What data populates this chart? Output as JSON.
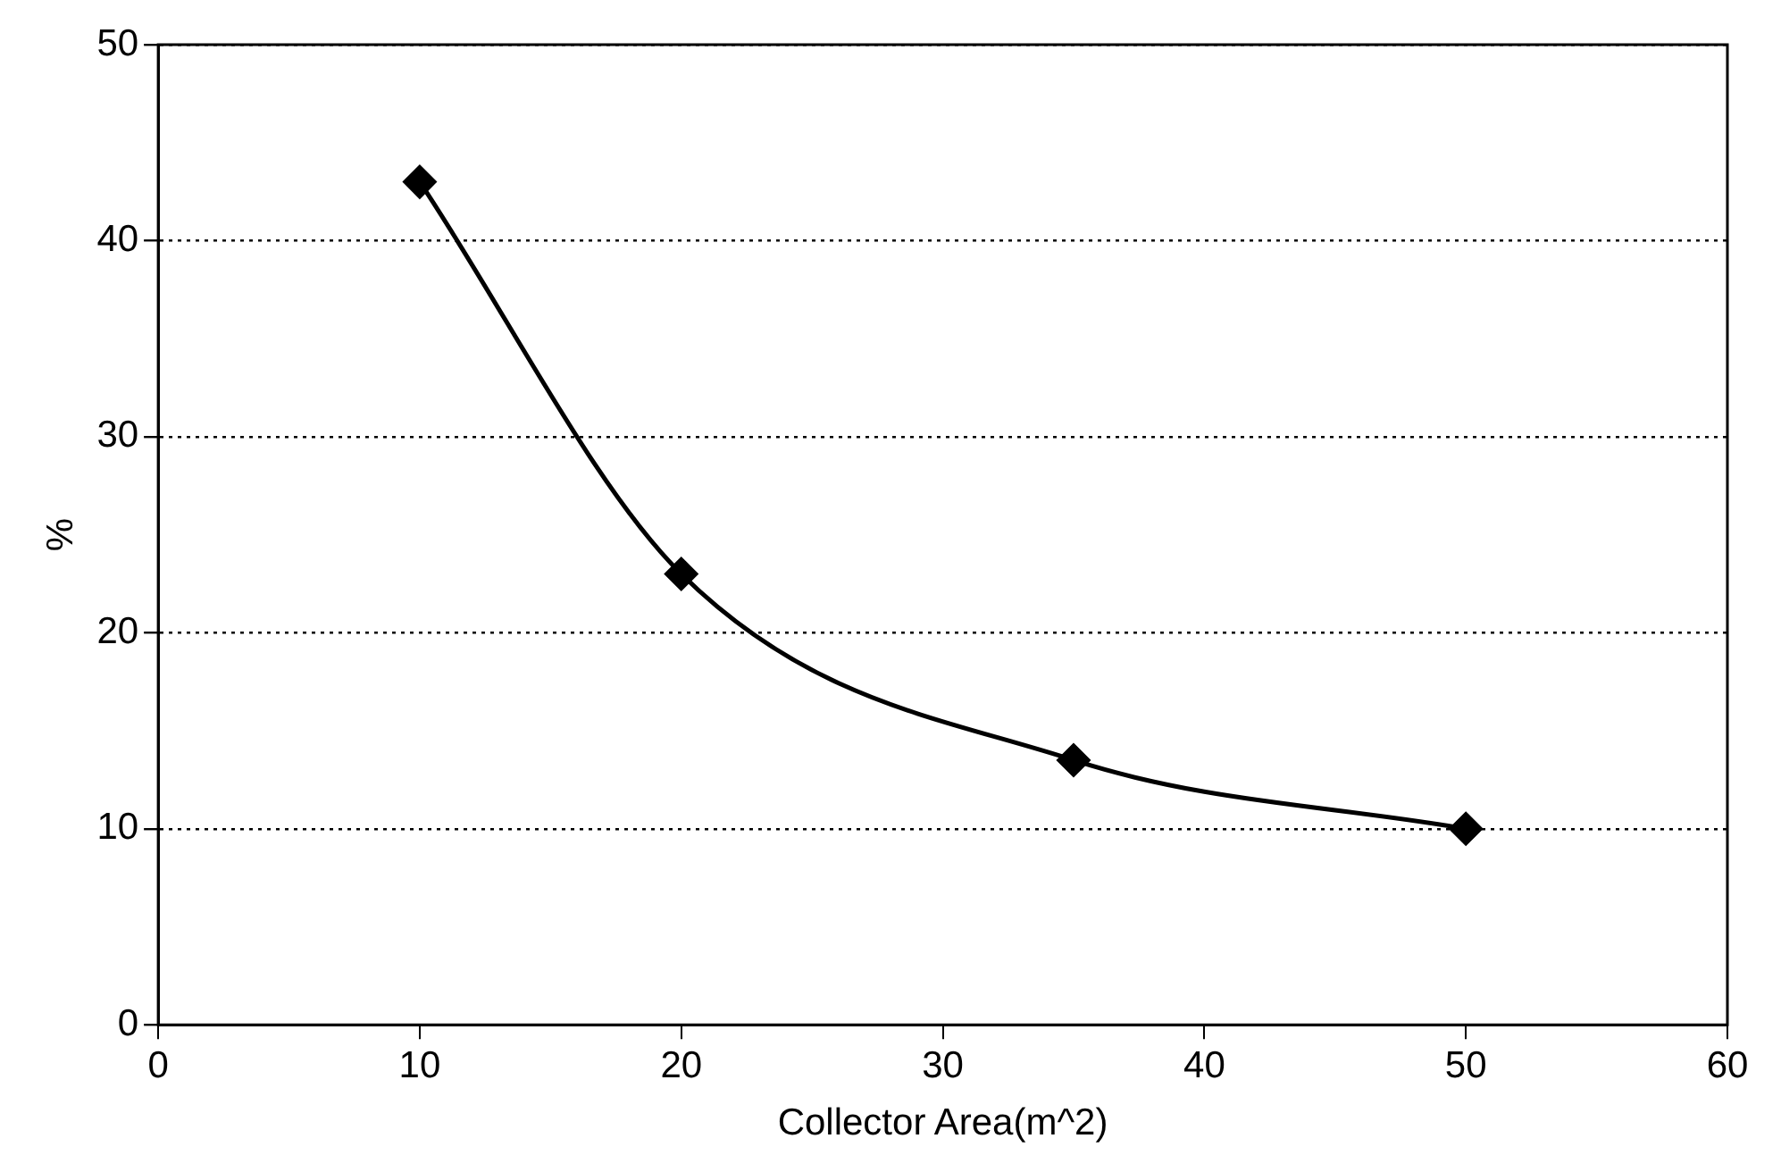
{
  "chart_data": {
    "type": "line",
    "xlabel": "Collector Area(m^2)",
    "ylabel": "%",
    "x": [
      10,
      20,
      35,
      50
    ],
    "series": [
      {
        "color": "#000000",
        "values": [
          43,
          23,
          13.5,
          10
        ]
      }
    ],
    "xlim": [
      0,
      60
    ],
    "xticks": [
      0,
      10,
      20,
      30,
      40,
      50,
      60
    ],
    "ylim": [
      0,
      50
    ],
    "yticks": [
      0,
      10,
      20,
      30,
      40,
      50
    ],
    "grid": "y",
    "legend": false,
    "marker": "diamond",
    "line_style": "solid"
  }
}
